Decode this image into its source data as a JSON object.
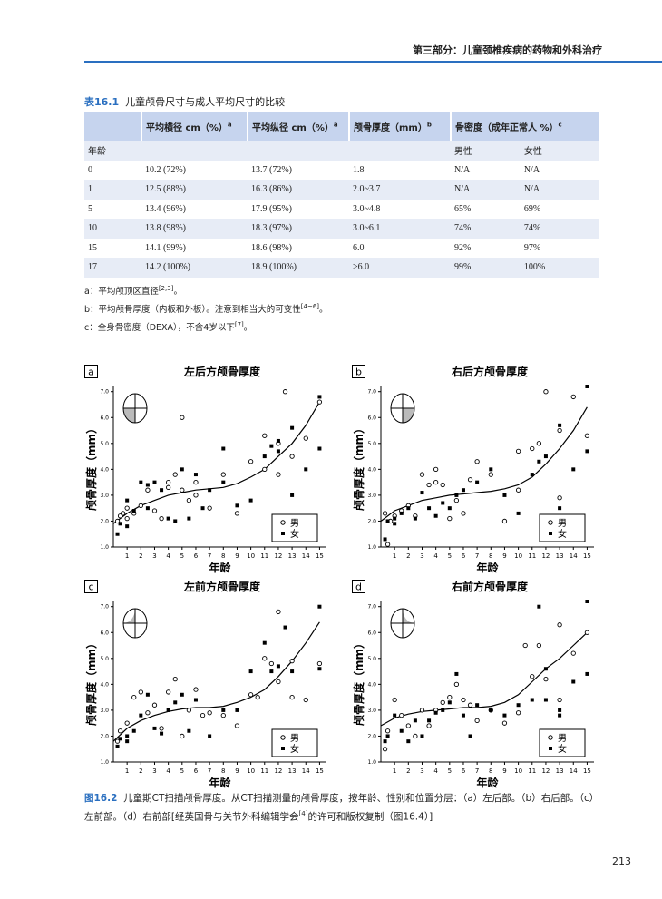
{
  "header": {
    "title": "第三部分：儿童颈椎疾病的药物和外科治疗"
  },
  "table": {
    "label": "表16.1",
    "title": "儿童颅骨尺寸与成人平均尺寸的比较",
    "columns": [
      {
        "text": "平均横径 cm（%）",
        "note": "a"
      },
      {
        "text": "平均纵径 cm（%）",
        "note": "a"
      },
      {
        "text": "颅骨厚度（mm）",
        "note": "b"
      },
      {
        "text": "骨密度（成年正常人 %）",
        "note": "c"
      }
    ],
    "subheader": {
      "label": "年龄",
      "male": "男性",
      "female": "女性"
    },
    "rows": [
      [
        "0",
        "10.2 (72%)",
        "13.7 (72%)",
        "1.8",
        "N/A",
        "N/A"
      ],
      [
        "1",
        "12.5 (88%)",
        "16.3 (86%)",
        "2.0~3.7",
        "N/A",
        "N/A"
      ],
      [
        "5",
        "13.4 (96%)",
        "17.9 (95%)",
        "3.0~4.8",
        "65%",
        "69%"
      ],
      [
        "10",
        "13.8 (98%)",
        "18.3 (97%)",
        "3.0~6.1",
        "74%",
        "74%"
      ],
      [
        "15",
        "14.1 (99%)",
        "18.6 (98%)",
        "6.0",
        "92%",
        "97%"
      ],
      [
        "17",
        "14.2 (100%)",
        "18.9 (100%)",
        ">6.0",
        "99%",
        "100%"
      ]
    ]
  },
  "notes": [
    {
      "text": "a：平均颅顶区直径",
      "ref": "[2,3]",
      "end": "。"
    },
    {
      "text": "b：平均颅骨厚度（内板和外板）。注意到相当大的可变性",
      "ref": "[4~6]",
      "end": "。"
    },
    {
      "text": "c：全身骨密度（DEXA），不含4岁以下",
      "ref": "[7]",
      "end": "。"
    }
  ],
  "chart_data": [
    {
      "type": "scatter",
      "panel": "a",
      "title": "左后方颅骨厚度",
      "xlabel": "年龄",
      "ylabel": "颅骨厚度（mm）",
      "xlim": [
        0,
        15.5
      ],
      "ylim": [
        1,
        7.2
      ],
      "xticks": [
        1,
        2,
        3,
        4,
        5,
        6,
        7,
        8,
        9,
        10,
        11,
        12,
        13,
        14,
        15
      ],
      "yticks": [
        {
          "value": 1,
          "label": "1.0"
        },
        {
          "value": 2,
          "label": "2.0"
        },
        {
          "value": 3,
          "label": "3.0"
        },
        {
          "value": 4,
          "label": "4.0"
        },
        {
          "value": 5,
          "label": "5.0"
        },
        {
          "value": 6,
          "label": "6.0"
        },
        {
          "value": 7,
          "label": "7.0"
        }
      ],
      "series": [
        {
          "name": "男",
          "color": "#000000",
          "marker": "circle",
          "x": [
            0.3,
            0.5,
            0.7,
            1,
            1,
            1.5,
            2,
            2.5,
            3,
            3.5,
            4,
            4,
            4.5,
            5,
            5,
            5.5,
            6,
            6,
            7,
            8,
            9,
            10,
            11,
            11,
            12,
            12,
            12.5,
            13,
            14,
            15
          ],
          "values": [
            2.0,
            2.2,
            2.3,
            2.5,
            2.1,
            2.3,
            2.6,
            3.2,
            2.4,
            2.1,
            3.3,
            3.5,
            3.8,
            6.0,
            3.2,
            2.8,
            3.5,
            3.0,
            2.5,
            3.8,
            2.3,
            4.3,
            5.3,
            4.0,
            5.0,
            3.8,
            7.0,
            4.5,
            5.2,
            6.6
          ]
        },
        {
          "name": "女",
          "color": "#000000",
          "marker": "square",
          "x": [
            0.3,
            0.5,
            1,
            1,
            1.5,
            2,
            2.5,
            2.5,
            3,
            3.5,
            4,
            4.5,
            5,
            5.5,
            6,
            6.5,
            7,
            8,
            8,
            9,
            10,
            11,
            11.5,
            12,
            12,
            13,
            13,
            14,
            15,
            15
          ],
          "values": [
            1.5,
            1.9,
            1.8,
            2.8,
            2.4,
            3.5,
            2.5,
            3.4,
            3.5,
            3.2,
            2.1,
            2.0,
            4.0,
            2.1,
            3.8,
            2.5,
            3.2,
            4.8,
            3.5,
            2.6,
            2.8,
            4.5,
            4.9,
            5.1,
            4.7,
            3.0,
            5.6,
            4.0,
            6.8,
            4.8
          ]
        }
      ],
      "trend": {
        "x": [
          0,
          1,
          2,
          3,
          4,
          5,
          6,
          7,
          8,
          9,
          10,
          11,
          12,
          13,
          14,
          15
        ],
        "values": [
          1.9,
          2.3,
          2.6,
          2.8,
          3.0,
          3.1,
          3.2,
          3.25,
          3.3,
          3.45,
          3.7,
          4.0,
          4.5,
          5.0,
          5.7,
          6.6
        ]
      }
    },
    {
      "type": "scatter",
      "panel": "b",
      "title": "右后方颅骨厚度",
      "xlabel": "年龄",
      "ylabel": "颅骨厚度（mm）",
      "xlim": [
        0,
        15.5
      ],
      "ylim": [
        1,
        7.2
      ],
      "xticks": [
        1,
        2,
        3,
        4,
        5,
        6,
        7,
        8,
        9,
        10,
        11,
        12,
        13,
        14,
        15
      ],
      "yticks": [
        {
          "value": 1,
          "label": "1.0"
        },
        {
          "value": 2,
          "label": "2.0"
        },
        {
          "value": 3,
          "label": "3.0"
        },
        {
          "value": 4,
          "label": "4.0"
        },
        {
          "value": 5,
          "label": "5.0"
        },
        {
          "value": 6,
          "label": "6.0"
        },
        {
          "value": 7,
          "label": "7.0"
        }
      ],
      "series": [
        {
          "name": "男",
          "color": "#000000",
          "marker": "circle",
          "x": [
            0.3,
            0.5,
            0.7,
            1,
            1.5,
            2,
            2.5,
            3,
            3.5,
            4,
            4,
            4.5,
            5,
            5.5,
            6,
            6.5,
            7,
            8,
            9,
            10,
            10,
            11,
            11.5,
            12,
            13,
            13,
            14,
            15
          ],
          "values": [
            2.3,
            1.1,
            2.0,
            2.2,
            2.4,
            2.6,
            2.2,
            3.8,
            3.4,
            4.0,
            3.5,
            3.4,
            2.1,
            2.8,
            2.3,
            3.6,
            4.3,
            3.8,
            2.0,
            3.2,
            4.7,
            4.8,
            5.0,
            7.0,
            5.5,
            2.9,
            6.8,
            5.3
          ]
        },
        {
          "name": "女",
          "color": "#000000",
          "marker": "square",
          "x": [
            0.3,
            0.5,
            1,
            1,
            1.5,
            2,
            2.5,
            3,
            3.5,
            4,
            4.5,
            5,
            5.5,
            6,
            7,
            8,
            9,
            10,
            11,
            11.5,
            12,
            13,
            13,
            14,
            15,
            15
          ],
          "values": [
            1.3,
            2.0,
            2.1,
            1.9,
            2.3,
            2.5,
            2.1,
            3.1,
            2.5,
            2.2,
            2.7,
            2.5,
            3.0,
            3.2,
            3.5,
            4.0,
            3.0,
            2.3,
            3.8,
            4.3,
            4.5,
            5.7,
            2.5,
            4.0,
            7.2,
            4.7
          ]
        }
      ],
      "trend": {
        "x": [
          0,
          1,
          2,
          3,
          4,
          5,
          6,
          7,
          8,
          9,
          10,
          11,
          12,
          13,
          14,
          15
        ],
        "values": [
          2.0,
          2.4,
          2.6,
          2.8,
          2.9,
          3.0,
          3.05,
          3.1,
          3.15,
          3.25,
          3.4,
          3.7,
          4.2,
          4.8,
          5.5,
          6.4
        ]
      }
    },
    {
      "type": "scatter",
      "panel": "c",
      "title": "左前方颅骨厚度",
      "xlabel": "年龄",
      "ylabel": "颅骨厚度（mm）",
      "xlim": [
        0,
        15.5
      ],
      "ylim": [
        1,
        7.2
      ],
      "xticks": [
        1,
        2,
        3,
        4,
        5,
        6,
        7,
        8,
        9,
        10,
        11,
        12,
        13,
        14,
        15
      ],
      "yticks": [
        {
          "value": 1,
          "label": "1.0"
        },
        {
          "value": 2,
          "label": "2.0"
        },
        {
          "value": 3,
          "label": "3.0"
        },
        {
          "value": 4,
          "label": "4.0"
        },
        {
          "value": 5,
          "label": "5.0"
        },
        {
          "value": 6,
          "label": "6.0"
        },
        {
          "value": 7,
          "label": "7.0"
        }
      ],
      "series": [
        {
          "name": "男",
          "color": "#000000",
          "marker": "circle",
          "x": [
            0.3,
            0.5,
            1,
            1.5,
            2,
            2.5,
            3,
            3.5,
            4,
            4.5,
            5,
            5.5,
            6,
            6.5,
            7,
            8,
            9,
            10,
            10.5,
            11,
            11.5,
            12,
            12,
            13,
            13,
            14,
            15
          ],
          "values": [
            1.8,
            2.2,
            2.5,
            3.5,
            3.7,
            2.9,
            3.2,
            2.3,
            3.7,
            4.2,
            2.0,
            3.0,
            3.8,
            2.8,
            2.9,
            2.8,
            2.4,
            3.6,
            3.5,
            5.0,
            4.8,
            4.1,
            6.8,
            4.9,
            3.5,
            3.4,
            4.8
          ]
        },
        {
          "name": "女",
          "color": "#000000",
          "marker": "square",
          "x": [
            0.3,
            0.5,
            1,
            1,
            1.5,
            2,
            2.5,
            3,
            3.5,
            4,
            4.5,
            5,
            5.5,
            6,
            7,
            8,
            9,
            10,
            11,
            11.5,
            12,
            12.5,
            13,
            15,
            15
          ],
          "values": [
            1.6,
            1.9,
            2.0,
            1.8,
            2.2,
            2.8,
            3.6,
            2.3,
            2.1,
            3.0,
            3.3,
            3.6,
            2.2,
            3.4,
            2.0,
            3.0,
            3.0,
            4.5,
            5.6,
            4.5,
            4.7,
            6.2,
            4.5,
            7.0,
            4.6
          ]
        }
      ],
      "trend": {
        "x": [
          0,
          1,
          2,
          3,
          4,
          5,
          6,
          7,
          8,
          9,
          10,
          11,
          12,
          13,
          14,
          15
        ],
        "values": [
          1.8,
          2.3,
          2.6,
          2.8,
          2.95,
          3.05,
          3.1,
          3.1,
          3.15,
          3.3,
          3.5,
          3.8,
          4.3,
          4.9,
          5.6,
          6.4
        ]
      }
    },
    {
      "type": "scatter",
      "panel": "d",
      "title": "右前方颅骨厚度",
      "xlabel": "年龄",
      "ylabel": "颅骨厚度（mm）",
      "xlim": [
        0,
        15.5
      ],
      "ylim": [
        1,
        7.2
      ],
      "xticks": [
        1,
        2,
        3,
        4,
        5,
        6,
        7,
        8,
        9,
        10,
        11,
        12,
        13,
        14,
        15
      ],
      "yticks": [
        {
          "value": 1,
          "label": "1.0"
        },
        {
          "value": 2,
          "label": "2.0"
        },
        {
          "value": 3,
          "label": "3.0"
        },
        {
          "value": 4,
          "label": "4.0"
        },
        {
          "value": 5,
          "label": "5.0"
        },
        {
          "value": 6,
          "label": "6.0"
        },
        {
          "value": 7,
          "label": "7.0"
        }
      ],
      "series": [
        {
          "name": "男",
          "color": "#000000",
          "marker": "circle",
          "x": [
            0.3,
            0.5,
            1,
            1.5,
            2,
            2.5,
            3,
            3.5,
            4,
            4.5,
            5,
            5.5,
            6,
            6.5,
            7,
            8,
            9,
            10,
            10.5,
            11,
            11.5,
            12,
            13,
            13,
            14,
            15
          ],
          "values": [
            1.5,
            2.2,
            3.4,
            2.8,
            2.4,
            2.0,
            3.0,
            2.4,
            3.0,
            3.3,
            3.5,
            4.0,
            3.4,
            3.2,
            2.6,
            3.0,
            2.5,
            2.9,
            5.5,
            4.3,
            5.5,
            4.2,
            6.3,
            3.4,
            5.2,
            6.0
          ]
        },
        {
          "name": "女",
          "color": "#000000",
          "marker": "square",
          "x": [
            0.3,
            0.5,
            1,
            1.5,
            2,
            2.5,
            3,
            3.5,
            4,
            4.5,
            5,
            5.5,
            6,
            6.5,
            7,
            8,
            9,
            10,
            11,
            11.5,
            12,
            12,
            13,
            13,
            14,
            15,
            15
          ],
          "values": [
            1.8,
            2.0,
            2.8,
            2.2,
            1.8,
            2.6,
            2.0,
            2.6,
            2.9,
            3.0,
            3.3,
            4.4,
            2.8,
            2.0,
            3.2,
            3.0,
            2.8,
            3.2,
            3.4,
            7.0,
            4.6,
            3.4,
            3.0,
            2.8,
            4.1,
            7.2,
            4.4
          ]
        }
      ],
      "trend": {
        "x": [
          0,
          1,
          2,
          3,
          4,
          5,
          6,
          7,
          8,
          9,
          10,
          11,
          12,
          13,
          14,
          15
        ],
        "values": [
          2.4,
          2.7,
          2.85,
          2.95,
          3.0,
          3.05,
          3.1,
          3.1,
          3.15,
          3.3,
          3.6,
          4.1,
          4.6,
          5.0,
          5.5,
          6.0
        ]
      }
    }
  ],
  "caption": {
    "label": "图16.2",
    "text": "儿童期CT扫描颅骨厚度。从CT扫描测量的颅骨厚度，按年龄、性别和位置分层：（a）左后部。（b）右后部。（c）左前部。（d）右前部[经英国骨与关节外科编辑学会",
    "ref": "[4]",
    "end": "的许可和版权复制（图16.4）]"
  },
  "page_number": "213"
}
